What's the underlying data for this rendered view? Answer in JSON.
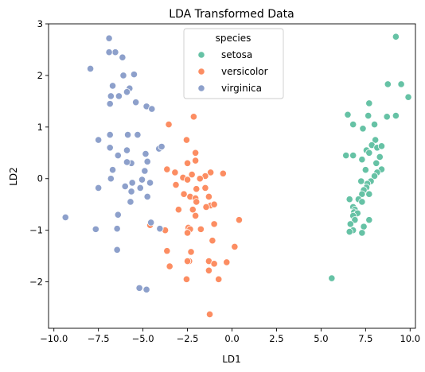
{
  "chart_data": {
    "type": "scatter",
    "title": "LDA Transformed Data",
    "xlabel": "LD1",
    "ylabel": "LD2",
    "xlim": [
      -10.3,
      10.3
    ],
    "ylim": [
      -2.9,
      3.0
    ],
    "xticks": [
      -10.0,
      -7.5,
      -5.0,
      -2.5,
      0.0,
      2.5,
      5.0,
      7.5,
      10.0
    ],
    "xtick_labels": [
      "−10.0",
      "−7.5",
      "−5.0",
      "−2.5",
      "0.0",
      "2.5",
      "5.0",
      "7.5",
      "10.0"
    ],
    "yticks": [
      -2,
      -1,
      0,
      1,
      2,
      3
    ],
    "ytick_labels": [
      "−2",
      "−1",
      "0",
      "1",
      "2",
      "3"
    ],
    "grid": false,
    "legend": {
      "title": "species",
      "placement": "top-center"
    },
    "series": [
      {
        "name": "setosa",
        "color": "#66c2a5",
        "points": [
          [
            9.2,
            2.75
          ],
          [
            9.5,
            1.83
          ],
          [
            8.75,
            1.83
          ],
          [
            9.9,
            1.58
          ],
          [
            7.7,
            1.46
          ],
          [
            6.5,
            1.24
          ],
          [
            9.2,
            1.22
          ],
          [
            7.65,
            1.22
          ],
          [
            8.7,
            1.2
          ],
          [
            6.8,
            1.05
          ],
          [
            8.0,
            1.05
          ],
          [
            7.35,
            0.97
          ],
          [
            8.05,
            0.75
          ],
          [
            7.85,
            0.65
          ],
          [
            8.15,
            0.6
          ],
          [
            7.55,
            0.55
          ],
          [
            7.7,
            0.5
          ],
          [
            8.4,
            0.63
          ],
          [
            8.3,
            0.42
          ],
          [
            6.8,
            0.45
          ],
          [
            6.4,
            0.45
          ],
          [
            7.3,
            0.37
          ],
          [
            8.1,
            0.3
          ],
          [
            8.4,
            0.18
          ],
          [
            8.15,
            0.12
          ],
          [
            8.0,
            0.05
          ],
          [
            7.5,
            0.17
          ],
          [
            7.25,
            -0.05
          ],
          [
            7.8,
            -0.05
          ],
          [
            7.6,
            -0.1
          ],
          [
            7.55,
            -0.17
          ],
          [
            7.4,
            -0.22
          ],
          [
            7.3,
            -0.3
          ],
          [
            7.7,
            -0.3
          ],
          [
            6.6,
            -0.4
          ],
          [
            7.1,
            -0.4
          ],
          [
            7.3,
            -0.45
          ],
          [
            6.8,
            -0.55
          ],
          [
            6.9,
            -0.6
          ],
          [
            6.85,
            -0.65
          ],
          [
            6.95,
            -0.7
          ],
          [
            7.05,
            -0.67
          ],
          [
            6.8,
            -0.72
          ],
          [
            6.9,
            -0.8
          ],
          [
            7.7,
            -0.8
          ],
          [
            6.65,
            -0.88
          ],
          [
            7.4,
            -0.93
          ],
          [
            6.8,
            -1.0
          ],
          [
            6.6,
            -1.03
          ],
          [
            7.3,
            -1.05
          ],
          [
            5.6,
            -1.93
          ]
        ]
      },
      {
        "name": "versicolor",
        "color": "#fc8d62",
        "points": [
          [
            -2.15,
            1.2
          ],
          [
            -3.55,
            1.05
          ],
          [
            -2.55,
            0.75
          ],
          [
            -2.05,
            0.5
          ],
          [
            -2.05,
            0.35
          ],
          [
            -2.5,
            0.3
          ],
          [
            -3.65,
            0.18
          ],
          [
            -3.2,
            0.12
          ],
          [
            -2.25,
            0.08
          ],
          [
            -1.2,
            0.12
          ],
          [
            -0.5,
            0.1
          ],
          [
            -1.5,
            0.05
          ],
          [
            -2.75,
            0.02
          ],
          [
            -1.8,
            0.0
          ],
          [
            -2.5,
            -0.02
          ],
          [
            -3.15,
            -0.12
          ],
          [
            -2.0,
            -0.2
          ],
          [
            -1.5,
            -0.18
          ],
          [
            -2.7,
            -0.3
          ],
          [
            -2.35,
            -0.35
          ],
          [
            -2.05,
            -0.38
          ],
          [
            -1.3,
            -0.35
          ],
          [
            -2.0,
            -0.45
          ],
          [
            -1.2,
            -0.52
          ],
          [
            -1.0,
            -0.5
          ],
          [
            -1.45,
            -0.55
          ],
          [
            -2.2,
            -0.6
          ],
          [
            -3.0,
            -0.6
          ],
          [
            -2.05,
            -0.72
          ],
          [
            -4.6,
            -0.9
          ],
          [
            -2.45,
            -0.95
          ],
          [
            -1.0,
            -0.88
          ],
          [
            -2.35,
            -0.98
          ],
          [
            -1.75,
            -0.98
          ],
          [
            0.4,
            -0.8
          ],
          [
            -3.75,
            -1.0
          ],
          [
            -2.5,
            -1.05
          ],
          [
            -1.1,
            -1.2
          ],
          [
            -2.3,
            -1.42
          ],
          [
            0.15,
            -1.32
          ],
          [
            -3.65,
            -1.4
          ],
          [
            -2.4,
            -1.6
          ],
          [
            -2.5,
            -1.6
          ],
          [
            -3.5,
            -1.7
          ],
          [
            -1.3,
            -1.6
          ],
          [
            -1.0,
            -1.65
          ],
          [
            -0.3,
            -1.62
          ],
          [
            -1.3,
            -1.78
          ],
          [
            -0.75,
            -1.95
          ],
          [
            -2.55,
            -1.95
          ],
          [
            -1.25,
            -2.63
          ]
        ]
      },
      {
        "name": "virginica",
        "color": "#8da0cb",
        "points": [
          [
            -6.9,
            2.72
          ],
          [
            -6.55,
            2.45
          ],
          [
            -6.9,
            2.45
          ],
          [
            -6.15,
            2.35
          ],
          [
            -7.95,
            2.13
          ],
          [
            -6.1,
            2.0
          ],
          [
            -5.5,
            2.02
          ],
          [
            -6.7,
            1.8
          ],
          [
            -5.75,
            1.75
          ],
          [
            -6.8,
            1.6
          ],
          [
            -6.35,
            1.6
          ],
          [
            -5.9,
            1.68
          ],
          [
            -6.85,
            1.45
          ],
          [
            -5.4,
            1.48
          ],
          [
            -4.8,
            1.4
          ],
          [
            -4.5,
            1.35
          ],
          [
            -6.85,
            0.85
          ],
          [
            -7.5,
            0.75
          ],
          [
            -5.85,
            0.85
          ],
          [
            -5.3,
            0.85
          ],
          [
            -6.85,
            0.6
          ],
          [
            -5.9,
            0.55
          ],
          [
            -4.1,
            0.58
          ],
          [
            -3.95,
            0.62
          ],
          [
            -6.4,
            0.45
          ],
          [
            -4.85,
            0.48
          ],
          [
            -5.65,
            0.3
          ],
          [
            -5.9,
            0.32
          ],
          [
            -4.75,
            0.33
          ],
          [
            -4.9,
            0.15
          ],
          [
            -6.7,
            0.17
          ],
          [
            -6.8,
            0.0
          ],
          [
            -5.05,
            -0.02
          ],
          [
            -5.6,
            -0.08
          ],
          [
            -4.6,
            -0.08
          ],
          [
            -6.0,
            -0.15
          ],
          [
            -5.15,
            -0.18
          ],
          [
            -7.5,
            -0.18
          ],
          [
            -5.65,
            -0.25
          ],
          [
            -4.75,
            -0.35
          ],
          [
            -5.7,
            -0.45
          ],
          [
            -6.4,
            -0.7
          ],
          [
            -9.35,
            -0.75
          ],
          [
            -4.55,
            -0.85
          ],
          [
            -6.45,
            -0.97
          ],
          [
            -7.65,
            -0.98
          ],
          [
            -4.05,
            -0.97
          ],
          [
            -6.45,
            -1.38
          ],
          [
            -5.2,
            -2.12
          ],
          [
            -4.8,
            -2.15
          ]
        ]
      }
    ]
  }
}
